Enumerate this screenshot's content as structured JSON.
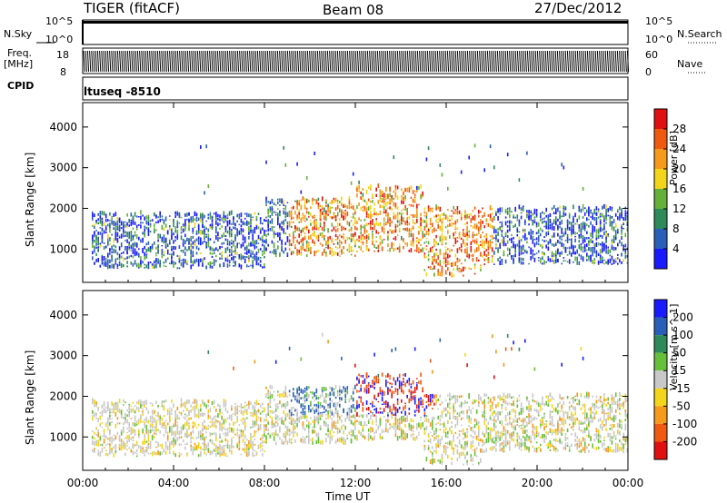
{
  "header": {
    "title": "TIGER (fitACF)",
    "beam": "Beam 08",
    "date": "27/Dec/2012"
  },
  "top_panels": {
    "nsky": {
      "label": "N.Sky",
      "ticks": [
        "10^5",
        "10^0"
      ]
    },
    "nsearch": {
      "label": "N.Search",
      "ticks": [
        "10^5",
        "10^0"
      ]
    },
    "freq": {
      "label_line1": "Freq.",
      "label_line2": "[MHz]",
      "ticks": [
        "18",
        "8"
      ]
    },
    "nave": {
      "label": "Nave",
      "ticks": [
        "60",
        "0"
      ]
    },
    "cpid": {
      "label": "CPID",
      "value": "ltuseq -8510"
    }
  },
  "chart_data": [
    {
      "type": "heatmap",
      "name_label": "Power",
      "ylabel": "Slant Range [km]",
      "xlabel": "",
      "x_ticks": [
        "00:00",
        "04:00",
        "08:00",
        "12:00",
        "16:00",
        "20:00",
        "00:00"
      ],
      "x_range_hours": [
        0,
        24
      ],
      "y_ticks": [
        1000,
        2000,
        3000,
        4000
      ],
      "ylim": [
        180,
        4600
      ],
      "colorbar": {
        "label": "Power [dB]",
        "ticks": [
          "4",
          "8",
          "12",
          "16",
          "20",
          "24",
          "28"
        ],
        "colors": [
          "#1a1aff",
          "#2a5fb8",
          "#2f8a5a",
          "#66b03a",
          "#f3d51a",
          "#f59a1a",
          "#f05a10",
          "#e01010"
        ]
      },
      "echo_bands": [
        {
          "start": 0.5,
          "end": 8,
          "low": 500,
          "high": 1850
        },
        {
          "start": 8,
          "end": 12,
          "low": 800,
          "high": 2200
        },
        {
          "start": 12,
          "end": 15,
          "low": 900,
          "high": 2500
        },
        {
          "start": 15,
          "end": 17.5,
          "low": 300,
          "high": 2000
        },
        {
          "start": 17.5,
          "end": 24,
          "low": 600,
          "high": 2000
        }
      ]
    },
    {
      "type": "heatmap",
      "name_label": "Velocity",
      "ylabel": "Slant Range [km]",
      "xlabel": "Time UT",
      "x_ticks": [
        "00:00",
        "04:00",
        "08:00",
        "12:00",
        "16:00",
        "20:00",
        "00:00"
      ],
      "x_range_hours": [
        0,
        24
      ],
      "y_ticks": [
        1000,
        2000,
        3000,
        4000
      ],
      "ylim": [
        180,
        4600
      ],
      "colorbar": {
        "label": "Velocity [m s^-1]",
        "ticks": [
          "200",
          "100",
          "50",
          "15",
          "-15",
          "-50",
          "-100",
          "-200"
        ],
        "colors": [
          "#1a1aff",
          "#2a5fb8",
          "#2f8a5a",
          "#66c03a",
          "#c8c8c8",
          "#f3d51a",
          "#f59a1a",
          "#f05a10",
          "#e01010"
        ]
      }
    }
  ]
}
